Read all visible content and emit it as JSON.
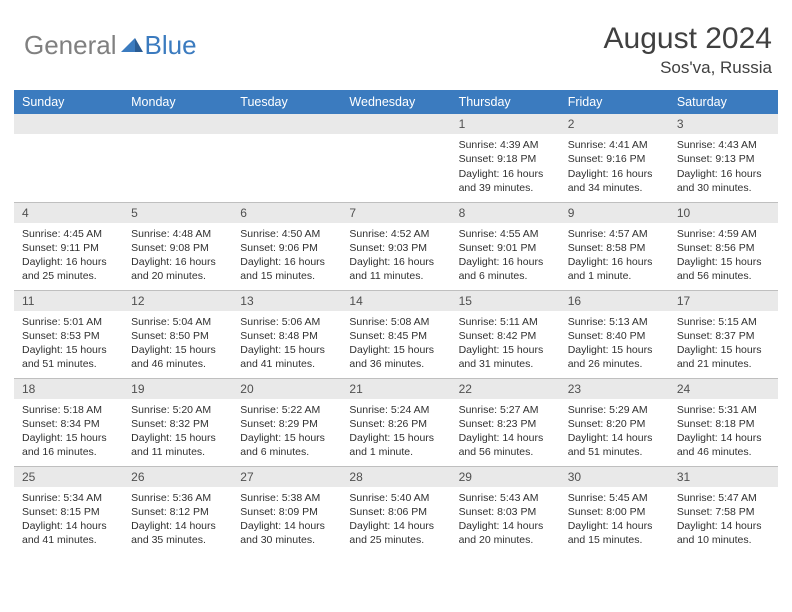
{
  "logo": {
    "part1": "General",
    "part2": "Blue"
  },
  "title": "August 2024",
  "location": "Sos'va, Russia",
  "day_headers": [
    "Sunday",
    "Monday",
    "Tuesday",
    "Wednesday",
    "Thursday",
    "Friday",
    "Saturday"
  ],
  "colors": {
    "header_bg": "#3b7bbf",
    "header_text": "#ffffff",
    "daynum_bg": "#e9e9e9",
    "cell_border": "#bfbfbf",
    "text": "#303030",
    "logo_gray": "#808080",
    "logo_blue": "#3b7bbf"
  },
  "weeks": [
    [
      null,
      null,
      null,
      null,
      {
        "n": "1",
        "sr": "4:39 AM",
        "ss": "9:18 PM",
        "dl": "16 hours and 39 minutes."
      },
      {
        "n": "2",
        "sr": "4:41 AM",
        "ss": "9:16 PM",
        "dl": "16 hours and 34 minutes."
      },
      {
        "n": "3",
        "sr": "4:43 AM",
        "ss": "9:13 PM",
        "dl": "16 hours and 30 minutes."
      }
    ],
    [
      {
        "n": "4",
        "sr": "4:45 AM",
        "ss": "9:11 PM",
        "dl": "16 hours and 25 minutes."
      },
      {
        "n": "5",
        "sr": "4:48 AM",
        "ss": "9:08 PM",
        "dl": "16 hours and 20 minutes."
      },
      {
        "n": "6",
        "sr": "4:50 AM",
        "ss": "9:06 PM",
        "dl": "16 hours and 15 minutes."
      },
      {
        "n": "7",
        "sr": "4:52 AM",
        "ss": "9:03 PM",
        "dl": "16 hours and 11 minutes."
      },
      {
        "n": "8",
        "sr": "4:55 AM",
        "ss": "9:01 PM",
        "dl": "16 hours and 6 minutes."
      },
      {
        "n": "9",
        "sr": "4:57 AM",
        "ss": "8:58 PM",
        "dl": "16 hours and 1 minute."
      },
      {
        "n": "10",
        "sr": "4:59 AM",
        "ss": "8:56 PM",
        "dl": "15 hours and 56 minutes."
      }
    ],
    [
      {
        "n": "11",
        "sr": "5:01 AM",
        "ss": "8:53 PM",
        "dl": "15 hours and 51 minutes."
      },
      {
        "n": "12",
        "sr": "5:04 AM",
        "ss": "8:50 PM",
        "dl": "15 hours and 46 minutes."
      },
      {
        "n": "13",
        "sr": "5:06 AM",
        "ss": "8:48 PM",
        "dl": "15 hours and 41 minutes."
      },
      {
        "n": "14",
        "sr": "5:08 AM",
        "ss": "8:45 PM",
        "dl": "15 hours and 36 minutes."
      },
      {
        "n": "15",
        "sr": "5:11 AM",
        "ss": "8:42 PM",
        "dl": "15 hours and 31 minutes."
      },
      {
        "n": "16",
        "sr": "5:13 AM",
        "ss": "8:40 PM",
        "dl": "15 hours and 26 minutes."
      },
      {
        "n": "17",
        "sr": "5:15 AM",
        "ss": "8:37 PM",
        "dl": "15 hours and 21 minutes."
      }
    ],
    [
      {
        "n": "18",
        "sr": "5:18 AM",
        "ss": "8:34 PM",
        "dl": "15 hours and 16 minutes."
      },
      {
        "n": "19",
        "sr": "5:20 AM",
        "ss": "8:32 PM",
        "dl": "15 hours and 11 minutes."
      },
      {
        "n": "20",
        "sr": "5:22 AM",
        "ss": "8:29 PM",
        "dl": "15 hours and 6 minutes."
      },
      {
        "n": "21",
        "sr": "5:24 AM",
        "ss": "8:26 PM",
        "dl": "15 hours and 1 minute."
      },
      {
        "n": "22",
        "sr": "5:27 AM",
        "ss": "8:23 PM",
        "dl": "14 hours and 56 minutes."
      },
      {
        "n": "23",
        "sr": "5:29 AM",
        "ss": "8:20 PM",
        "dl": "14 hours and 51 minutes."
      },
      {
        "n": "24",
        "sr": "5:31 AM",
        "ss": "8:18 PM",
        "dl": "14 hours and 46 minutes."
      }
    ],
    [
      {
        "n": "25",
        "sr": "5:34 AM",
        "ss": "8:15 PM",
        "dl": "14 hours and 41 minutes."
      },
      {
        "n": "26",
        "sr": "5:36 AM",
        "ss": "8:12 PM",
        "dl": "14 hours and 35 minutes."
      },
      {
        "n": "27",
        "sr": "5:38 AM",
        "ss": "8:09 PM",
        "dl": "14 hours and 30 minutes."
      },
      {
        "n": "28",
        "sr": "5:40 AM",
        "ss": "8:06 PM",
        "dl": "14 hours and 25 minutes."
      },
      {
        "n": "29",
        "sr": "5:43 AM",
        "ss": "8:03 PM",
        "dl": "14 hours and 20 minutes."
      },
      {
        "n": "30",
        "sr": "5:45 AM",
        "ss": "8:00 PM",
        "dl": "14 hours and 15 minutes."
      },
      {
        "n": "31",
        "sr": "5:47 AM",
        "ss": "7:58 PM",
        "dl": "14 hours and 10 minutes."
      }
    ]
  ],
  "labels": {
    "sunrise": "Sunrise: ",
    "sunset": "Sunset: ",
    "daylight": "Daylight: "
  }
}
